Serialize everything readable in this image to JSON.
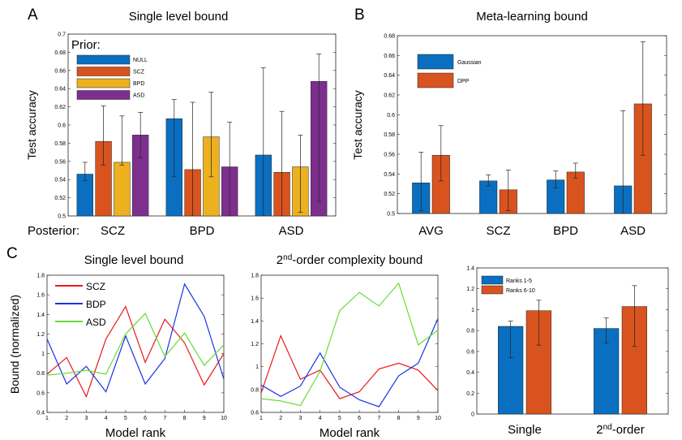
{
  "labels": {
    "A": "A",
    "B": "B",
    "C": "C",
    "prior": "Prior:",
    "posterior": "Posterior:"
  },
  "colors": {
    "blue": "#0a6fc0",
    "orange": "#d9531e",
    "yellow": "#edb11f",
    "purple": "#7e2f8e",
    "red_line": "#e8191b",
    "blue_line": "#1a33e6",
    "green_line": "#66dd33"
  },
  "chart_data": [
    {
      "id": "A",
      "type": "bar",
      "title": "Single level bound",
      "ylabel": "Test accuracy",
      "ylim": [
        0.5,
        0.7
      ],
      "yticks": [
        "0.5",
        "0.52",
        "0.54",
        "0.56",
        "0.58",
        "0.6",
        "0.62",
        "0.64",
        "0.66",
        "0.68",
        "0.7"
      ],
      "categories": [
        "SCZ",
        "BPD",
        "ASD"
      ],
      "series": [
        {
          "name": "NULL",
          "color": "#0a6fc0",
          "values": [
            0.546,
            0.607,
            0.567
          ],
          "err_low": [
            0.539,
            0.543,
            0.5
          ],
          "err_high": [
            0.559,
            0.628,
            0.663
          ]
        },
        {
          "name": "SCZ",
          "color": "#d9531e",
          "values": [
            0.582,
            0.551,
            0.548
          ],
          "err_low": [
            0.556,
            0.5,
            0.5
          ],
          "err_high": [
            0.621,
            0.625,
            0.615
          ]
        },
        {
          "name": "BPD",
          "color": "#edb11f",
          "values": [
            0.559,
            0.587,
            0.554
          ],
          "err_low": [
            0.556,
            0.543,
            0.504
          ],
          "err_high": [
            0.61,
            0.636,
            0.589
          ]
        },
        {
          "name": "ASD",
          "color": "#7e2f8e",
          "values": [
            0.589,
            0.554,
            0.648
          ],
          "err_low": [
            0.564,
            0.5,
            0.516
          ],
          "err_high": [
            0.614,
            0.603,
            0.678
          ]
        }
      ]
    },
    {
      "id": "B",
      "type": "bar",
      "title": "Meta-learning bound",
      "ylabel": "Test accuracy",
      "ylim": [
        0.5,
        0.68
      ],
      "yticks": [
        "0.5",
        "0.52",
        "0.54",
        "0.56",
        "0.58",
        "0.6",
        "0.62",
        "0.64",
        "0.66",
        "0.68"
      ],
      "categories": [
        "AVG",
        "SCZ",
        "BPD",
        "ASD"
      ],
      "series": [
        {
          "name": "Gaussian",
          "color": "#0a6fc0",
          "values": [
            0.531,
            0.533,
            0.534,
            0.528
          ],
          "err_low": [
            0.503,
            0.528,
            0.526,
            0.5
          ],
          "err_high": [
            0.562,
            0.539,
            0.543,
            0.604
          ]
        },
        {
          "name": "DPP",
          "color": "#d9531e",
          "values": [
            0.559,
            0.524,
            0.542,
            0.611
          ],
          "err_low": [
            0.533,
            0.503,
            0.536,
            0.559
          ],
          "err_high": [
            0.589,
            0.544,
            0.551,
            0.674
          ]
        }
      ]
    },
    {
      "id": "C1",
      "type": "line",
      "title": "Single level bound",
      "ylabel": "Bound (normalized)",
      "xlabel": "Model rank",
      "x": [
        1,
        2,
        3,
        4,
        5,
        6,
        7,
        8,
        9,
        10
      ],
      "xticks": [
        "1",
        "2",
        "3",
        "4",
        "5",
        "6",
        "7",
        "8",
        "9",
        "10"
      ],
      "ylim": [
        0.4,
        1.8
      ],
      "yticks": [
        "0.4",
        "0.6",
        "0.8",
        "1",
        "1.2",
        "1.4",
        "1.6",
        "1.8"
      ],
      "series": [
        {
          "name": "SCZ",
          "color": "#e8191b",
          "values": [
            0.79,
            0.96,
            0.56,
            1.15,
            1.48,
            0.91,
            1.35,
            1.11,
            0.68,
            1.0
          ]
        },
        {
          "name": "BDP",
          "color": "#1a33e6",
          "values": [
            1.15,
            0.69,
            0.87,
            0.61,
            1.18,
            0.69,
            0.95,
            1.71,
            1.38,
            0.74
          ]
        },
        {
          "name": "ASD",
          "color": "#66dd33",
          "values": [
            0.78,
            0.8,
            0.83,
            0.79,
            1.2,
            1.41,
            0.97,
            1.21,
            0.88,
            1.09
          ]
        }
      ]
    },
    {
      "id": "C2",
      "type": "line",
      "title": "2nd-order complexity bound",
      "title_main": "2",
      "title_sup": "nd",
      "title_rest": "-order complexity bound",
      "xlabel": "Model rank",
      "x": [
        1,
        2,
        3,
        4,
        5,
        6,
        7,
        8,
        9,
        10
      ],
      "xticks": [
        "1",
        "2",
        "3",
        "4",
        "5",
        "6",
        "7",
        "8",
        "9",
        "10"
      ],
      "ylim": [
        0.6,
        1.8
      ],
      "yticks": [
        "0.6",
        "0.8",
        "1",
        "1.2",
        "1.4",
        "1.6",
        "1.8"
      ],
      "series": [
        {
          "name": "SCZ",
          "color": "#e8191b",
          "values": [
            0.77,
            1.27,
            0.89,
            0.97,
            0.72,
            0.78,
            0.98,
            1.03,
            0.97,
            0.79
          ]
        },
        {
          "name": "BDP",
          "color": "#1a33e6",
          "values": [
            0.84,
            0.74,
            0.83,
            1.12,
            0.82,
            0.71,
            0.65,
            0.92,
            1.03,
            1.42
          ]
        },
        {
          "name": "ASD",
          "color": "#66dd33",
          "values": [
            0.72,
            0.7,
            0.66,
            0.96,
            1.49,
            1.65,
            1.53,
            1.73,
            1.19,
            1.32
          ]
        }
      ]
    },
    {
      "id": "C3",
      "type": "bar",
      "ylim": [
        0,
        1.4
      ],
      "yticks": [
        "0",
        "0.2",
        "0.4",
        "0.6",
        "0.8",
        "1",
        "1.2",
        "1.4"
      ],
      "categories": [
        "Single",
        "2nd-order"
      ],
      "series": [
        {
          "name": "Ranks 1-5",
          "color": "#0a6fc0",
          "values": [
            0.84,
            0.82
          ],
          "err_low": [
            0.54,
            0.68
          ],
          "err_high": [
            0.89,
            0.92
          ]
        },
        {
          "name": "Ranks 6-10",
          "color": "#d9531e",
          "values": [
            0.99,
            1.03
          ],
          "err_low": [
            0.66,
            0.65
          ],
          "err_high": [
            1.09,
            1.23
          ]
        }
      ]
    }
  ]
}
